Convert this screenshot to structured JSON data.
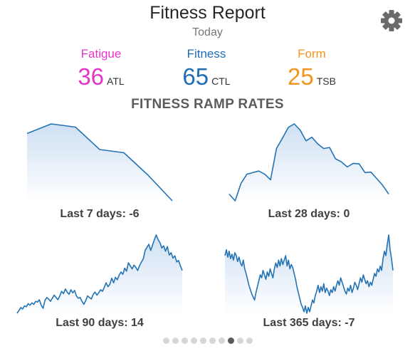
{
  "header": {
    "title": "Fitness Report",
    "subtitle": "Today",
    "settings_icon": "gear-icon"
  },
  "metrics": [
    {
      "label": "Fatigue",
      "value": "36",
      "unit": "ATL",
      "color": "#e535c8"
    },
    {
      "label": "Fitness",
      "value": "65",
      "unit": "CTL",
      "color": "#1f6db5"
    },
    {
      "label": "Form",
      "value": "25",
      "unit": "TSB",
      "color": "#f5941f"
    }
  ],
  "section_title": "FITNESS RAMP RATES",
  "colors": {
    "line": "#2373b4",
    "fill_top": "#cfe0f3",
    "fill_bottom": "#ffffff",
    "dot": "#d6d6d6",
    "dot_active": "#5a5a5a"
  },
  "chart_data": [
    {
      "type": "area",
      "title": "Last 7 days: -6",
      "x": [
        0,
        1,
        2,
        3,
        4,
        5,
        6
      ],
      "values": [
        10.0,
        10.6,
        10.4,
        9.0,
        8.8,
        7.4,
        5.8
      ]
    },
    {
      "type": "area",
      "title": "Last 28 days: 0",
      "x": [
        0,
        1,
        2,
        3,
        4,
        5,
        6,
        7,
        8,
        9,
        10,
        11,
        12,
        13,
        14,
        15,
        16,
        17,
        18,
        19,
        20,
        21,
        22,
        23,
        24,
        25,
        26,
        27
      ],
      "values": [
        1.5,
        0.2,
        3.6,
        5.4,
        5.7,
        6.0,
        5.4,
        4.3,
        10.4,
        12.4,
        14.5,
        15.2,
        14.0,
        11.9,
        12.6,
        11.3,
        10.4,
        10.6,
        8.4,
        7.8,
        6.8,
        7.5,
        7.4,
        5.7,
        5.8,
        4.5,
        3.2,
        1.5
      ]
    },
    {
      "type": "area",
      "title": "Last 90 days: 14",
      "x": [
        0,
        1,
        2,
        3,
        4,
        5,
        6,
        7,
        8,
        9,
        10,
        11,
        12,
        13,
        14,
        15,
        16,
        17,
        18,
        19,
        20,
        21,
        22,
        23,
        24,
        25,
        26,
        27,
        28,
        29,
        30,
        31,
        32,
        33,
        34,
        35,
        36,
        37,
        38,
        39,
        40,
        41,
        42,
        43,
        44,
        45,
        46,
        47,
        48,
        49,
        50,
        51,
        52,
        53,
        54,
        55,
        56,
        57,
        58,
        59,
        60,
        61,
        62,
        63,
        64,
        65,
        66,
        67,
        68,
        69,
        70,
        71,
        72,
        73,
        74,
        75,
        76,
        77,
        78,
        79,
        80,
        81,
        82,
        83,
        84,
        85,
        86,
        87,
        88,
        89
      ],
      "values": [
        0.5,
        1.2,
        2.0,
        1.6,
        2.4,
        2.2,
        3.0,
        2.6,
        3.2,
        2.8,
        3.6,
        3.4,
        4.0,
        2.6,
        1.8,
        3.8,
        4.6,
        4.2,
        3.6,
        4.4,
        5.2,
        4.6,
        4.0,
        5.0,
        6.2,
        5.6,
        6.8,
        6.0,
        5.4,
        6.6,
        5.8,
        6.4,
        5.0,
        4.4,
        4.6,
        3.6,
        2.8,
        3.8,
        5.0,
        4.6,
        4.2,
        5.4,
        6.0,
        5.2,
        5.8,
        6.6,
        6.2,
        7.2,
        8.4,
        7.4,
        8.0,
        9.6,
        8.4,
        9.8,
        9.2,
        10.4,
        11.2,
        10.6,
        12.2,
        11.4,
        13.6,
        12.8,
        12.0,
        13.0,
        12.4,
        11.6,
        12.8,
        13.8,
        14.6,
        16.8,
        17.6,
        18.4,
        16.8,
        18.2,
        19.6,
        20.8,
        19.6,
        18.8,
        17.4,
        18.0,
        16.6,
        17.8,
        15.6,
        16.2,
        14.8,
        15.4,
        13.8,
        14.2,
        12.8,
        11.6
      ]
    },
    {
      "type": "area",
      "title": "Last 365 days: -7",
      "x": [
        0,
        1,
        2,
        3,
        4,
        5,
        6,
        7,
        8,
        9,
        10,
        11,
        12,
        13,
        14,
        15,
        16,
        17,
        18,
        19,
        20,
        21,
        22,
        23,
        24,
        25,
        26,
        27,
        28,
        29,
        30,
        31,
        32,
        33,
        34,
        35,
        36,
        37,
        38,
        39,
        40,
        41,
        42,
        43,
        44,
        45,
        46,
        47,
        48,
        49,
        50,
        51,
        52,
        53,
        54,
        55,
        56,
        57,
        58,
        59,
        60,
        61,
        62,
        63,
        64,
        65,
        66,
        67,
        68,
        69,
        70,
        71,
        72,
        73,
        74,
        75,
        76,
        77,
        78,
        79,
        80,
        81,
        82,
        83,
        84,
        85,
        86,
        87,
        88,
        89,
        90,
        91,
        92,
        93,
        94,
        95,
        96,
        97,
        98,
        99,
        100,
        101,
        102,
        103,
        104,
        105,
        106,
        107,
        108,
        109,
        110,
        111,
        112,
        113,
        114,
        115,
        116,
        117,
        118,
        119
      ],
      "values": [
        22.0,
        24.0,
        21.5,
        23.5,
        21.0,
        22.5,
        20.5,
        23.0,
        22.0,
        20.0,
        21.5,
        19.5,
        18.5,
        20.5,
        17.5,
        16.0,
        14.0,
        12.0,
        10.5,
        9.0,
        8.0,
        7.0,
        9.5,
        11.5,
        13.5,
        15.5,
        14.5,
        17.0,
        15.5,
        14.0,
        16.5,
        15.0,
        17.5,
        16.0,
        14.5,
        17.5,
        19.5,
        18.0,
        20.5,
        18.5,
        21.0,
        19.0,
        20.5,
        22.0,
        18.5,
        20.5,
        17.5,
        19.0,
        18.0,
        16.0,
        14.0,
        11.5,
        9.5,
        7.5,
        5.5,
        4.5,
        3.0,
        5.0,
        2.5,
        4.5,
        3.0,
        5.0,
        7.0,
        6.0,
        8.5,
        10.0,
        12.0,
        9.5,
        11.5,
        10.0,
        12.5,
        9.5,
        11.0,
        10.0,
        8.5,
        10.5,
        9.5,
        11.5,
        10.0,
        12.0,
        13.5,
        12.0,
        14.5,
        13.0,
        11.5,
        10.0,
        9.0,
        11.0,
        10.0,
        12.0,
        9.5,
        11.0,
        13.0,
        12.0,
        10.5,
        12.5,
        14.5,
        13.0,
        15.5,
        14.0,
        12.5,
        13.5,
        11.5,
        13.0,
        12.0,
        14.0,
        16.0,
        15.0,
        17.5,
        16.5,
        18.5,
        17.0,
        21.0,
        23.5,
        22.0,
        26.0,
        29.0,
        24.0,
        21.0,
        17.0
      ]
    }
  ],
  "pagination": {
    "count": 10,
    "active_index": 7
  }
}
